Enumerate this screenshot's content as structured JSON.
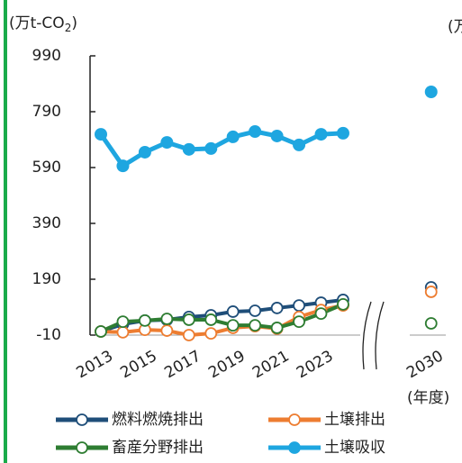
{
  "chart_data": {
    "type": "line",
    "y_label": {
      "main": "(万t-CO",
      "sub": "2",
      "end": ")"
    },
    "right_label": "(万",
    "x_unit": "(年度)",
    "categories": [
      "2013",
      null,
      "2015",
      null,
      "2017",
      null,
      "2019",
      null,
      "2021",
      null,
      "2023",
      null,
      null,
      null,
      null,
      "2030"
    ],
    "ylim": [
      -10,
      990
    ],
    "yticks": [
      -10,
      190,
      390,
      590,
      790,
      990
    ],
    "series": [
      {
        "name": "燃料燃焼排出",
        "color": "#1f4e79",
        "hollow": true,
        "values": [
          3,
          29,
          42,
          45,
          55,
          61,
          74,
          77,
          87,
          96,
          106,
          116,
          null,
          null,
          null,
          161
        ]
      },
      {
        "name": "土壌排出",
        "color": "#ed7d31",
        "hollow": true,
        "values": [
          3,
          0,
          9,
          6,
          -10,
          -4,
          16,
          22,
          13,
          55,
          80,
          96,
          null,
          null,
          null,
          145
        ]
      },
      {
        "name": "畜産分野排出",
        "color": "#2e7d32",
        "hollow": true,
        "values": [
          3,
          38,
          42,
          48,
          45,
          45,
          25,
          25,
          16,
          38,
          67,
          100,
          null,
          null,
          null,
          32
        ]
      },
      {
        "name": "土壌吸収",
        "color": "#1ea6e0",
        "hollow": false,
        "values": [
          709,
          596,
          645,
          680,
          655,
          658,
          700,
          719,
          703,
          671,
          709,
          713,
          null,
          null,
          null,
          861
        ]
      }
    ]
  }
}
